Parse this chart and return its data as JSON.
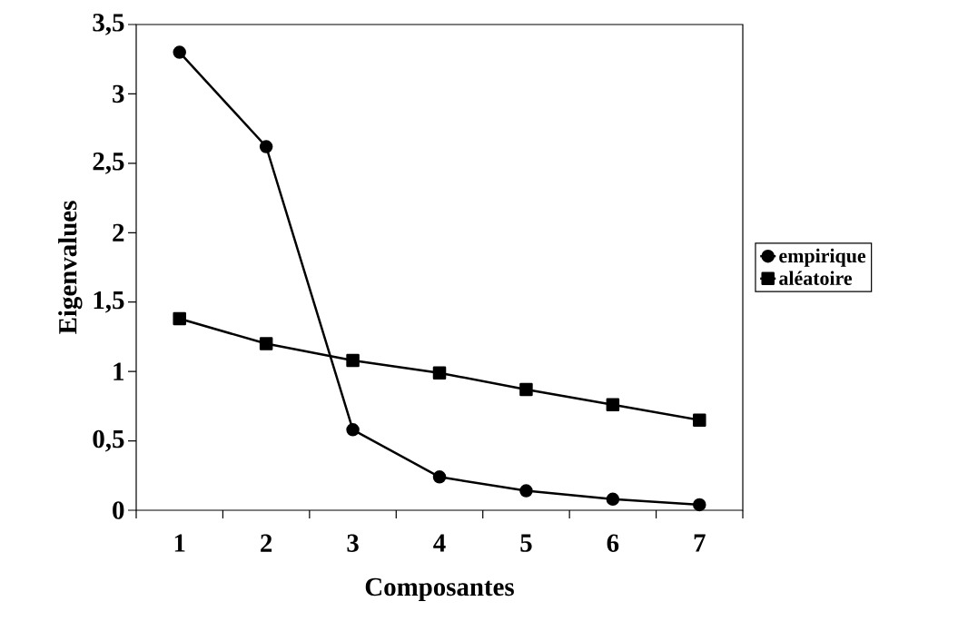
{
  "chart_data": {
    "type": "line",
    "xlabel": "Composantes",
    "ylabel": "Eigenvalues",
    "categories": [
      "1",
      "2",
      "3",
      "4",
      "5",
      "6",
      "7"
    ],
    "series": [
      {
        "name": "empirique",
        "color": "#000000",
        "marker": "circle",
        "values": [
          3.3,
          2.62,
          0.58,
          0.24,
          0.14,
          0.08,
          0.04
        ]
      },
      {
        "name": "aléatoire",
        "color": "#000000",
        "marker": "square",
        "values": [
          1.38,
          1.2,
          1.08,
          0.99,
          0.87,
          0.76,
          0.65
        ]
      }
    ],
    "ylim": [
      0,
      3.5
    ],
    "yticks": [
      {
        "value": 0,
        "label": "0"
      },
      {
        "value": 0.5,
        "label": "0,5"
      },
      {
        "value": 1,
        "label": "1"
      },
      {
        "value": 1.5,
        "label": "1,5"
      },
      {
        "value": 2,
        "label": "2"
      },
      {
        "value": 2.5,
        "label": "2,5"
      },
      {
        "value": 3,
        "label": "3"
      },
      {
        "value": 3.5,
        "label": "3,5"
      }
    ],
    "grid": false,
    "legend": "right",
    "line_style": "solid"
  }
}
